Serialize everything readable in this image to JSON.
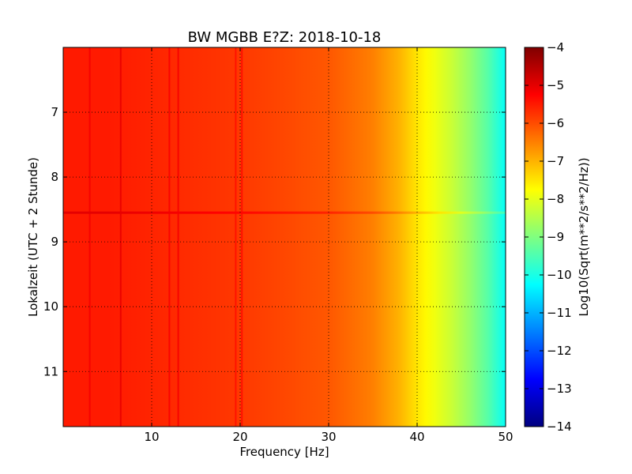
{
  "chart_data": {
    "type": "heatmap",
    "title": "BW MGBB E?Z: 2018-10-18",
    "xlabel": "Frequency [Hz]",
    "ylabel": "Lokalzeit (UTC + 2 Stunde)",
    "colorbar_label": "Log10(Sqrt(m**2/s**2/Hz))",
    "xlim": [
      0,
      50
    ],
    "ylim": [
      11.85,
      6.0
    ],
    "y_inverted": true,
    "x_ticks": [
      10,
      20,
      30,
      40,
      50
    ],
    "x_tick_labels": [
      "10",
      "20",
      "30",
      "40",
      "50"
    ],
    "y_ticks": [
      7,
      8,
      9,
      10,
      11
    ],
    "y_tick_labels": [
      "7",
      "8",
      "9",
      "10",
      "11"
    ],
    "grid": true,
    "colormap": "jet",
    "clim": [
      -14,
      -4
    ],
    "colorbar_ticks": [
      -4,
      -5,
      -6,
      -7,
      -8,
      -9,
      -10,
      -11,
      -12,
      -13,
      -14
    ],
    "colorbar_tick_labels": [
      "−4",
      "−5",
      "−6",
      "−7",
      "−8",
      "−9",
      "−10",
      "−11",
      "−12",
      "−13",
      "−14"
    ],
    "frequency_profile": {
      "x": [
        0,
        5,
        10,
        20,
        30,
        35,
        38,
        40,
        42,
        44,
        46,
        48,
        50
      ],
      "values": [
        -5.5,
        -5.5,
        -5.6,
        -5.8,
        -6.1,
        -6.5,
        -7.0,
        -7.5,
        -7.9,
        -8.3,
        -8.8,
        -9.4,
        -10.2
      ]
    },
    "vertical_lines": [
      {
        "freq": 3,
        "delta": 0.35
      },
      {
        "freq": 6.5,
        "delta": 0.5
      },
      {
        "freq": 12,
        "delta": 0.45
      },
      {
        "freq": 13,
        "delta": 0.5
      },
      {
        "freq": 19.5,
        "delta": 0.4
      },
      {
        "freq": 20.2,
        "delta": 0.45
      }
    ],
    "horizontal_lines": [
      {
        "time": 8.55,
        "delta": 0.5,
        "fmax": 50
      }
    ]
  }
}
